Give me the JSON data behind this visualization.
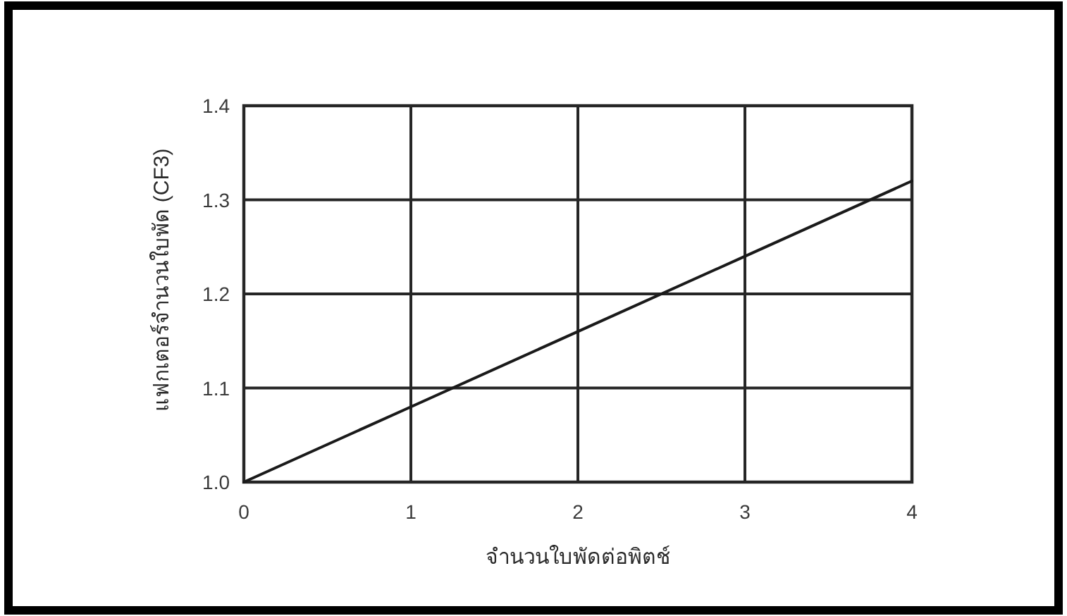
{
  "chart_data": {
    "type": "line",
    "xlabel": "จำนวนใบพัดต่อพิตช์",
    "ylabel": "แฟกเตอร์จำนวนใบพัด (CF3)",
    "x": [
      0,
      1,
      2,
      3,
      4
    ],
    "series": [
      {
        "color": "#1a1a1a",
        "values": [
          1.0,
          1.08,
          1.16,
          1.24,
          1.32
        ]
      }
    ],
    "xlim": [
      0,
      4
    ],
    "ylim": [
      1.0,
      1.4
    ],
    "xticks": [
      0,
      1,
      2,
      3,
      4
    ],
    "yticks": [
      {
        "value": 1,
        "label": "1.0"
      },
      {
        "value": 1.1,
        "label": "1.1"
      },
      {
        "value": 1.2,
        "label": "1.2"
      },
      {
        "value": 1.3,
        "label": "1.3"
      },
      {
        "value": 1.4,
        "label": "1.4"
      }
    ],
    "grid": true
  }
}
